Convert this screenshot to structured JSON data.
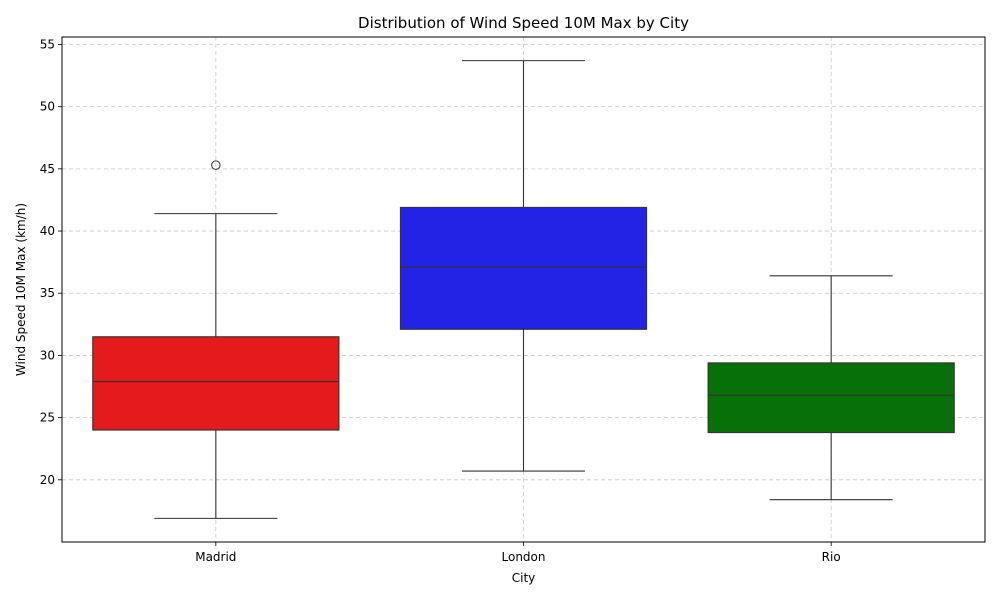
{
  "chart_data": {
    "type": "box",
    "title": "Distribution of Wind Speed 10M Max by City",
    "xlabel": "City",
    "ylabel": "Wind Speed 10M Max (km/h)",
    "categories": [
      "Madrid",
      "London",
      "Rio"
    ],
    "ylim": [
      15,
      55.6
    ],
    "yticks": [
      20,
      25,
      30,
      35,
      40,
      45,
      50,
      55
    ],
    "grid": true,
    "series": [
      {
        "category": "Madrid",
        "whisker_low": 16.9,
        "q1": 24.0,
        "median": 27.9,
        "q3": 31.5,
        "whisker_high": 41.4,
        "outliers": [
          45.3
        ],
        "color": "#e41a1c"
      },
      {
        "category": "London",
        "whisker_low": 20.7,
        "q1": 32.1,
        "median": 37.1,
        "q3": 41.9,
        "whisker_high": 53.7,
        "outliers": [],
        "color": "#2323e6"
      },
      {
        "category": "Rio",
        "whisker_low": 18.4,
        "q1": 23.8,
        "median": 26.8,
        "q3": 29.4,
        "whisker_high": 36.4,
        "outliers": [],
        "color": "#087008"
      }
    ]
  }
}
